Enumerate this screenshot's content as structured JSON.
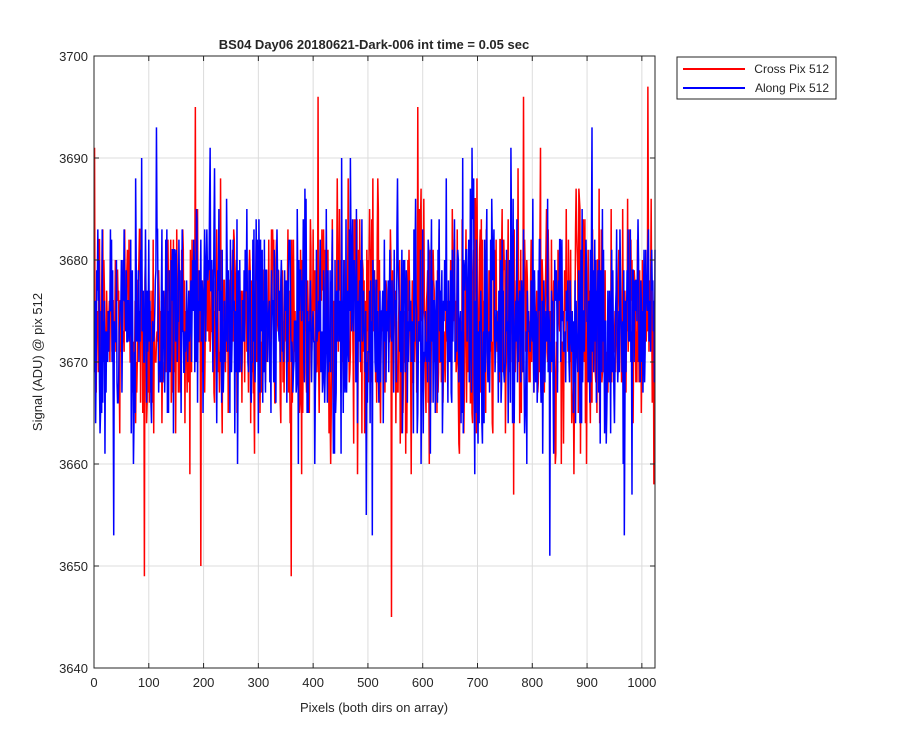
{
  "chart_data": {
    "type": "line",
    "title": "BS04 Day06 20180621-Dark-006 int time = 0.05 sec",
    "xlabel": "Pixels (both dirs on array)",
    "ylabel": "Signal (ADU) @ pix 512",
    "xlim": [
      0,
      1024
    ],
    "ylim": [
      3640,
      3700
    ],
    "xticks": [
      0,
      100,
      200,
      300,
      400,
      500,
      600,
      700,
      800,
      900,
      1000
    ],
    "yticks": [
      3640,
      3650,
      3660,
      3670,
      3680,
      3690,
      3700
    ],
    "xtick_labels": [
      "0",
      "100",
      "200",
      "300",
      "400",
      "500",
      "600",
      "700",
      "800",
      "900",
      "1000"
    ],
    "ytick_labels": [
      "3640",
      "3650",
      "3660",
      "3670",
      "3680",
      "3690",
      "3700"
    ],
    "grid": true,
    "legend_position": "outside-top-right",
    "series": [
      {
        "name": "Cross Pix 512",
        "color": "#ff0000",
        "x_start": 1,
        "x_step": 1,
        "count": 1024,
        "mean": 3674,
        "std": 6,
        "min": 3645,
        "max": 3697,
        "extremes": [
          [
            92,
            3649
          ],
          [
            185,
            3695
          ],
          [
            409,
            3696
          ],
          [
            543,
            3645
          ],
          [
            591,
            3695
          ],
          [
            784,
            3696
          ],
          [
            1011,
            3697
          ]
        ]
      },
      {
        "name": "Along Pix 512",
        "color": "#0000ff",
        "x_start": 1,
        "x_step": 1,
        "count": 1024,
        "mean": 3674,
        "std": 6,
        "min": 3651,
        "max": 3693,
        "extremes": [
          [
            36,
            3653
          ],
          [
            114,
            3693
          ],
          [
            508,
            3653
          ],
          [
            832,
            3651
          ],
          [
            909,
            3693
          ],
          [
            968,
            3653
          ]
        ]
      }
    ]
  }
}
